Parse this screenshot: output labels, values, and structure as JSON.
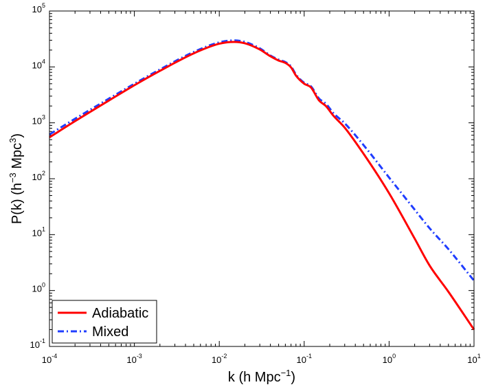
{
  "chart_data": {
    "type": "line",
    "title": "",
    "x_scale": "log",
    "y_scale": "log",
    "xlim": [
      0.0001,
      10
    ],
    "ylim": [
      0.1,
      100000
    ],
    "xlabel": {
      "prefix": "k (h Mpc",
      "sup": "−1",
      "suffix": ")"
    },
    "ylabel": {
      "p1": "P(k) (h",
      "sup1": "−3",
      "p2": " Mpc",
      "sup2": "3",
      "p3": ")"
    },
    "x_ticks": [
      {
        "base": "10",
        "exp": "-4",
        "value": 0.0001
      },
      {
        "base": "10",
        "exp": "-3",
        "value": 0.001
      },
      {
        "base": "10",
        "exp": "-2",
        "value": 0.01
      },
      {
        "base": "10",
        "exp": "-1",
        "value": 0.1
      },
      {
        "base": "10",
        "exp": "0",
        "value": 1
      },
      {
        "base": "10",
        "exp": "1",
        "value": 10
      }
    ],
    "y_ticks": [
      {
        "base": "10",
        "exp": "-1",
        "value": 0.1
      },
      {
        "base": "10",
        "exp": "0",
        "value": 1
      },
      {
        "base": "10",
        "exp": "1",
        "value": 10
      },
      {
        "base": "10",
        "exp": "2",
        "value": 100
      },
      {
        "base": "10",
        "exp": "3",
        "value": 1000
      },
      {
        "base": "10",
        "exp": "4",
        "value": 10000
      },
      {
        "base": "10",
        "exp": "5",
        "value": 100000
      }
    ],
    "legend": {
      "placement": "bottom-left"
    },
    "series": [
      {
        "name": "Adiabatic",
        "color": "#ff0000",
        "style": "solid",
        "x": [
          0.0001,
          0.0002,
          0.0005,
          0.001,
          0.002,
          0.005,
          0.01,
          0.015,
          0.02,
          0.03,
          0.04,
          0.05,
          0.06,
          0.07,
          0.08,
          0.1,
          0.12,
          0.15,
          0.18,
          0.22,
          0.3,
          0.5,
          1,
          2,
          3,
          5,
          10
        ],
        "y": [
          550,
          1070,
          2500,
          4700,
          8500,
          17500,
          26000,
          28000,
          26500,
          20500,
          15500,
          13000,
          11800,
          9800,
          7000,
          5000,
          4300,
          2500,
          2000,
          1350,
          820,
          280,
          55,
          8.5,
          2.8,
          0.95,
          0.2
        ]
      },
      {
        "name": "Mixed",
        "color": "#1f3dff",
        "style": "dashdot",
        "x": [
          0.0001,
          0.0002,
          0.0005,
          0.001,
          0.002,
          0.005,
          0.01,
          0.015,
          0.02,
          0.03,
          0.04,
          0.05,
          0.06,
          0.07,
          0.08,
          0.1,
          0.12,
          0.15,
          0.18,
          0.22,
          0.3,
          0.5,
          1,
          2,
          3,
          5,
          10
        ],
        "y": [
          620,
          1180,
          2700,
          5000,
          9000,
          18500,
          27500,
          29800,
          28000,
          21500,
          16000,
          13500,
          12200,
          10200,
          7300,
          5200,
          4500,
          2700,
          2200,
          1500,
          980,
          400,
          105,
          28,
          13,
          5.5,
          1.5
        ]
      }
    ]
  }
}
